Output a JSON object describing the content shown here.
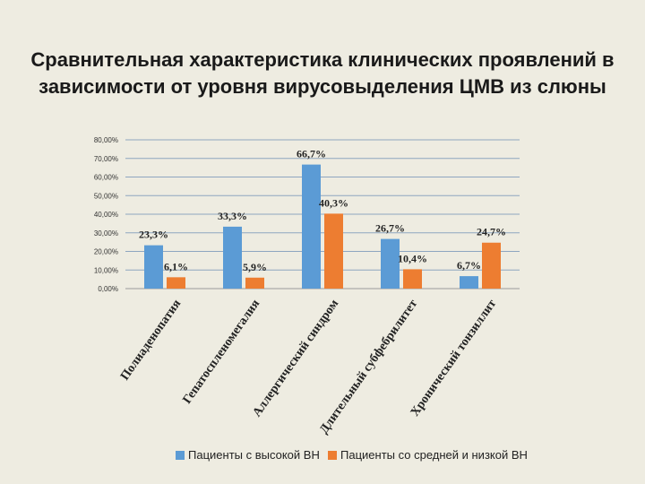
{
  "title": "Сравнительная характеристика клинических проявлений в зависимости от уровня вирусовыделения ЦМВ из слюны",
  "colors": {
    "series1": "#5b9bd5",
    "series2": "#ed7d31",
    "grid": "#8ea6c0",
    "axis": "#9a9a9a"
  },
  "chart_data": {
    "type": "bar",
    "title": "Сравнительная характеристика клинических проявлений в зависимости от уровня вирусовыделения ЦМВ из слюны",
    "categories": [
      "Полиаденопатия",
      "Гепатоспленомегалия",
      "Аллергический синдром",
      "Длительный субфебрилитет",
      "Хронический тонзиллит"
    ],
    "series": [
      {
        "name": "Пациенты с высокой ВН",
        "values": [
          23.3,
          33.3,
          66.7,
          26.7,
          6.7
        ],
        "labels": [
          "23,3%",
          "33,3%",
          "66,7%",
          "26,7%",
          "6,7%"
        ]
      },
      {
        "name": "Пациенты со средней и низкой ВН",
        "values": [
          6.1,
          5.9,
          40.3,
          10.4,
          24.7
        ],
        "labels": [
          "6,1%",
          "5,9%",
          "40,3%",
          "10,4%",
          "24,7%"
        ]
      }
    ],
    "ylim": [
      0,
      80
    ],
    "yticks": [
      0,
      10,
      20,
      30,
      40,
      50,
      60,
      70,
      80
    ],
    "ytick_labels": [
      "0,00%",
      "10,00%",
      "20,00%",
      "30,00%",
      "40,00%",
      "50,00%",
      "60,00%",
      "70,00%",
      "80,00%"
    ],
    "xlabel": "",
    "ylabel": "",
    "legend": "bottom"
  }
}
